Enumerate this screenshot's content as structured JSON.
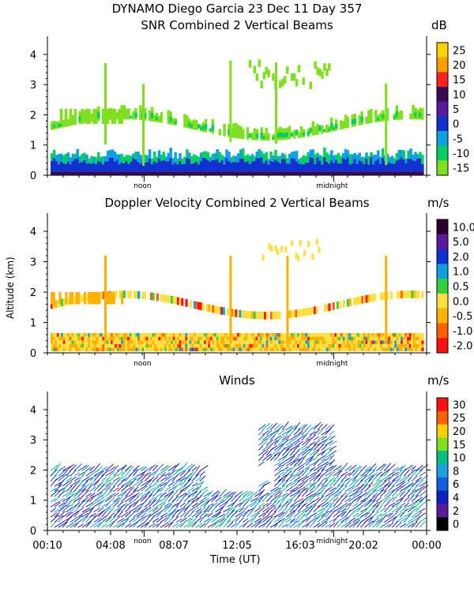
{
  "header": {
    "title_line1": "DYNAMO Diego Garcia  23 Dec 11 Day 357",
    "title_line2": "SNR Combined 2 Vertical Beams"
  },
  "panels": {
    "snr": {
      "unit": "dB"
    },
    "doppler": {
      "title": "Doppler Velocity Combined 2 Vertical Beams",
      "unit": "m/s",
      "ylabel": "Altitude (km)"
    },
    "winds": {
      "title": "Winds",
      "unit": "m/s",
      "xlabel": "Time (UT)"
    }
  },
  "chart_data": [
    {
      "type": "heatmap",
      "title": "SNR Combined 2 Vertical Beams",
      "y_ticks": [
        "0",
        "1",
        "2",
        "3",
        "4"
      ],
      "ylim": [
        0,
        4.6
      ],
      "x_markers": [
        "noon",
        "midnight"
      ],
      "colorbar": {
        "unit": "dB",
        "labels": [
          "25",
          "20",
          "15",
          "10",
          "5",
          "0",
          "-5",
          "-10",
          "-15"
        ],
        "colors": [
          "#ffd200",
          "#ffa000",
          "#ff2020",
          "#3a0a55",
          "#5a1aa0",
          "#1030d0",
          "#10a0e0",
          "#00d060",
          "#80e020"
        ]
      }
    },
    {
      "type": "heatmap",
      "title": "Doppler Velocity Combined 2 Vertical Beams",
      "ylabel": "Altitude (km)",
      "y_ticks": [
        "0",
        "1",
        "2",
        "3",
        "4"
      ],
      "ylim": [
        0,
        4.6
      ],
      "x_markers": [
        "noon",
        "midnight"
      ],
      "colorbar": {
        "unit": "m/s",
        "labels": [
          "10.0",
          "5.0",
          "2.0",
          "1.0",
          "0.5",
          "0.0",
          "-0.5",
          "-1.0",
          "-2.0"
        ],
        "colors": [
          "#2a0030",
          "#5a1a9a",
          "#1030d0",
          "#10a0e0",
          "#30d040",
          "#ffe040",
          "#ffb000",
          "#ff6000",
          "#ff1010"
        ]
      }
    },
    {
      "type": "scatter",
      "title": "Winds",
      "xlabel": "Time (UT)",
      "y_ticks": [
        "0",
        "1",
        "2",
        "3",
        "4"
      ],
      "ylim": [
        0,
        4.6
      ],
      "x_markers": [
        "noon",
        "midnight"
      ],
      "x_ticks": [
        "00:10",
        "04:08",
        "08:07",
        "12:05",
        "16:03",
        "20:02",
        "00:00"
      ],
      "colorbar": {
        "unit": "m/s",
        "labels": [
          "30",
          "25",
          "20",
          "15",
          "10",
          "8",
          "6",
          "4",
          "2",
          "0"
        ],
        "colors": [
          "#ff1010",
          "#ff6000",
          "#ffd000",
          "#80e020",
          "#00c080",
          "#20a0e0",
          "#1060e0",
          "#1020c0",
          "#5a1a9a",
          "#000000"
        ]
      }
    }
  ]
}
